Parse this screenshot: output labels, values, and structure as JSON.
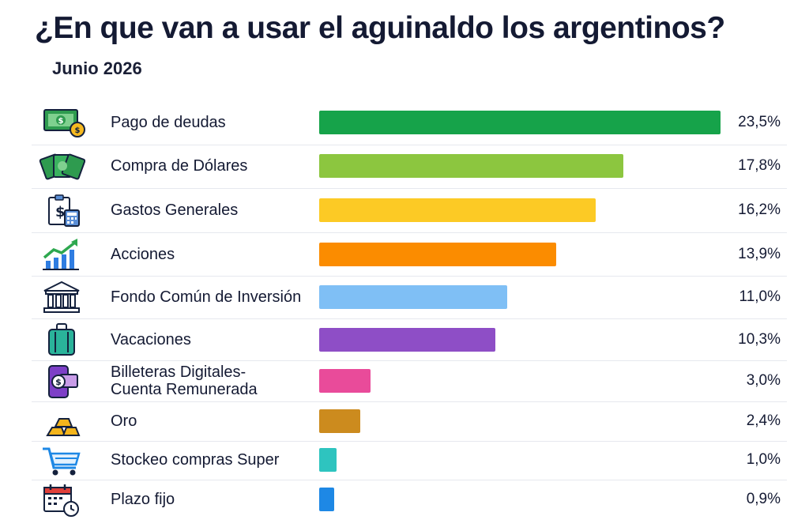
{
  "title": "¿En que van a usar el aguinaldo los argentinos?",
  "subtitle": "Junio 2026",
  "chart_data": {
    "type": "bar",
    "orientation": "horizontal",
    "title": "¿En que van a usar el aguinaldo los argentinos?",
    "subtitle": "Junio 2026",
    "categories": [
      "Pago de deudas",
      "Compra de Dólares",
      "Gastos Generales",
      "Acciones",
      "Fondo Común de Inversión",
      "Vacaciones",
      "Billeteras Digitales-\nCuenta Remunerada",
      "Oro",
      "Stockeo compras Super",
      "Plazo fijo"
    ],
    "values": [
      23.5,
      17.8,
      16.2,
      13.9,
      11.0,
      10.3,
      3.0,
      2.4,
      1.0,
      0.9
    ],
    "value_labels": [
      "23,5%",
      "17,8%",
      "16,2%",
      "13,9%",
      "11,0%",
      "10,3%",
      "3,0%",
      "2,4%",
      "1,0%",
      "0,9%"
    ],
    "colors": [
      "#16a34a",
      "#8cc63f",
      "#fcca25",
      "#fb8c00",
      "#7fbff5",
      "#8e4ec6",
      "#e94b9a",
      "#cc8b1e",
      "#2ec4bf",
      "#1e88e5"
    ],
    "icons": [
      "cash-icon",
      "money-stack-icon",
      "calculator-icon",
      "chart-growth-icon",
      "bank-icon",
      "suitcase-icon",
      "digital-wallet-icon",
      "gold-bars-icon",
      "shopping-cart-icon",
      "calendar-clock-icon"
    ],
    "xlim": [
      0,
      23.5
    ],
    "grid": false,
    "legend": "none"
  }
}
